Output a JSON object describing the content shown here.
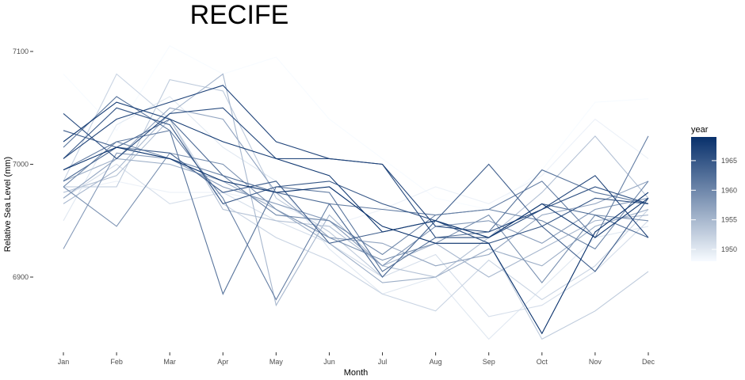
{
  "chart_data": {
    "type": "line",
    "title": "RECIFE",
    "xlabel": "Month",
    "ylabel": "Relative Sea Level (mm)",
    "categories": [
      "Jan",
      "Feb",
      "Mar",
      "Apr",
      "May",
      "Jun",
      "Jul",
      "Aug",
      "Sep",
      "Oct",
      "Nov",
      "Dec"
    ],
    "ylim": [
      6830,
      7120
    ],
    "y_ticks": [
      6900,
      7000,
      7100
    ],
    "legend": {
      "title": "year",
      "position": "right",
      "labels": [
        "1965",
        "1960",
        "1955",
        "1950"
      ],
      "tick_values": [
        1965,
        1960,
        1955,
        1950
      ],
      "range": [
        1948,
        1969
      ],
      "color_low": "#f7fbff",
      "color_high": "#08306b"
    },
    "grid": false,
    "series": [
      {
        "year": 1948,
        "values": [
          7080,
          7030,
          7105,
          7080,
          7095,
          7040,
          7005,
          6970,
          6960,
          6995,
          7055,
          7058
        ]
      },
      {
        "year": 1949,
        "values": [
          6975,
          6985,
          6975,
          6975,
          6965,
          6945,
          6960,
          6980,
          6965,
          6990,
          7040,
          7005
        ]
      },
      {
        "year": 1950,
        "values": [
          6950,
          7035,
          7060,
          7015,
          6985,
          6925,
          6885,
          6900,
          6845,
          6890,
          6935,
          6945
        ]
      },
      {
        "year": 1951,
        "values": [
          6970,
          7000,
          6965,
          6975,
          6950,
          6930,
          6900,
          6920,
          6865,
          6875,
          6905,
          6950
        ]
      },
      {
        "year": 1952,
        "values": [
          6985,
          7080,
          7040,
          6965,
          6935,
          6915,
          6885,
          6870,
          6915,
          6880,
          6910,
          6960
        ]
      },
      {
        "year": 1953,
        "values": [
          6980,
          6980,
          7075,
          7065,
          6970,
          6940,
          6900,
          6950,
          6930,
          6845,
          6870,
          6905
        ]
      },
      {
        "year": 1954,
        "values": [
          6975,
          6990,
          7040,
          6960,
          6950,
          6945,
          6910,
          6900,
          6935,
          6975,
          7025,
          6970
        ]
      },
      {
        "year": 1955,
        "values": [
          6965,
          6995,
          7045,
          7080,
          6875,
          6955,
          6910,
          6930,
          6900,
          6925,
          6950,
          6955
        ]
      },
      {
        "year": 1956,
        "values": [
          6985,
          7005,
          7000,
          6985,
          6960,
          6930,
          6895,
          6900,
          6925,
          6910,
          6945,
          6960
        ]
      },
      {
        "year": 1957,
        "values": [
          6970,
          7005,
          7050,
          7040,
          6975,
          6935,
          6930,
          6910,
          6920,
          6955,
          6965,
          6985
        ]
      },
      {
        "year": 1958,
        "values": [
          6925,
          7010,
          7005,
          6980,
          6965,
          6950,
          6910,
          6945,
          6950,
          6930,
          6960,
          6970
        ]
      },
      {
        "year": 1959,
        "values": [
          6980,
          6945,
          7010,
          7000,
          6960,
          6935,
          6915,
          6930,
          6955,
          6895,
          6955,
          6950
        ]
      },
      {
        "year": 1960,
        "values": [
          6980,
          7020,
          7005,
          6990,
          6955,
          6950,
          6920,
          6955,
          6960,
          6950,
          6925,
          6985
        ]
      },
      {
        "year": 1961,
        "values": [
          6995,
          7020,
          7030,
          6970,
          6880,
          6965,
          6960,
          6955,
          6960,
          6985,
          6935,
          7025
        ]
      },
      {
        "year": 1962,
        "values": [
          7015,
          7060,
          7030,
          6885,
          6980,
          6975,
          6905,
          6935,
          6940,
          6995,
          6975,
          6965
        ]
      },
      {
        "year": 1963,
        "values": [
          6985,
          7015,
          7040,
          6990,
          6975,
          6965,
          6900,
          6950,
          6935,
          6965,
          6955,
          6935
        ]
      },
      {
        "year": 1964,
        "values": [
          7030,
          7015,
          7010,
          6975,
          6985,
          6930,
          6940,
          6950,
          7000,
          6945,
          6905,
          6970
        ]
      },
      {
        "year": 1965,
        "values": [
          7005,
          7050,
          7035,
          6965,
          6980,
          6985,
          6965,
          6950,
          6930,
          6945,
          6970,
          6965
        ]
      },
      {
        "year": 1966,
        "values": [
          7045,
          7005,
          7045,
          7050,
          7005,
          7005,
          7000,
          6935,
          6935,
          6960,
          6980,
          6965
        ]
      },
      {
        "year": 1967,
        "values": [
          7005,
          7040,
          7055,
          7070,
          7020,
          7005,
          7000,
          6945,
          6940,
          6960,
          6990,
          6935
        ]
      },
      {
        "year": 1968,
        "values": [
          7020,
          7055,
          7040,
          7020,
          7005,
          6990,
          6940,
          6950,
          6935,
          6965,
          6935,
          6970
        ]
      },
      {
        "year": 1969,
        "values": [
          6995,
          7015,
          7005,
          6985,
          6975,
          6980,
          6945,
          6930,
          6930,
          6850,
          6940,
          6975
        ]
      }
    ]
  }
}
